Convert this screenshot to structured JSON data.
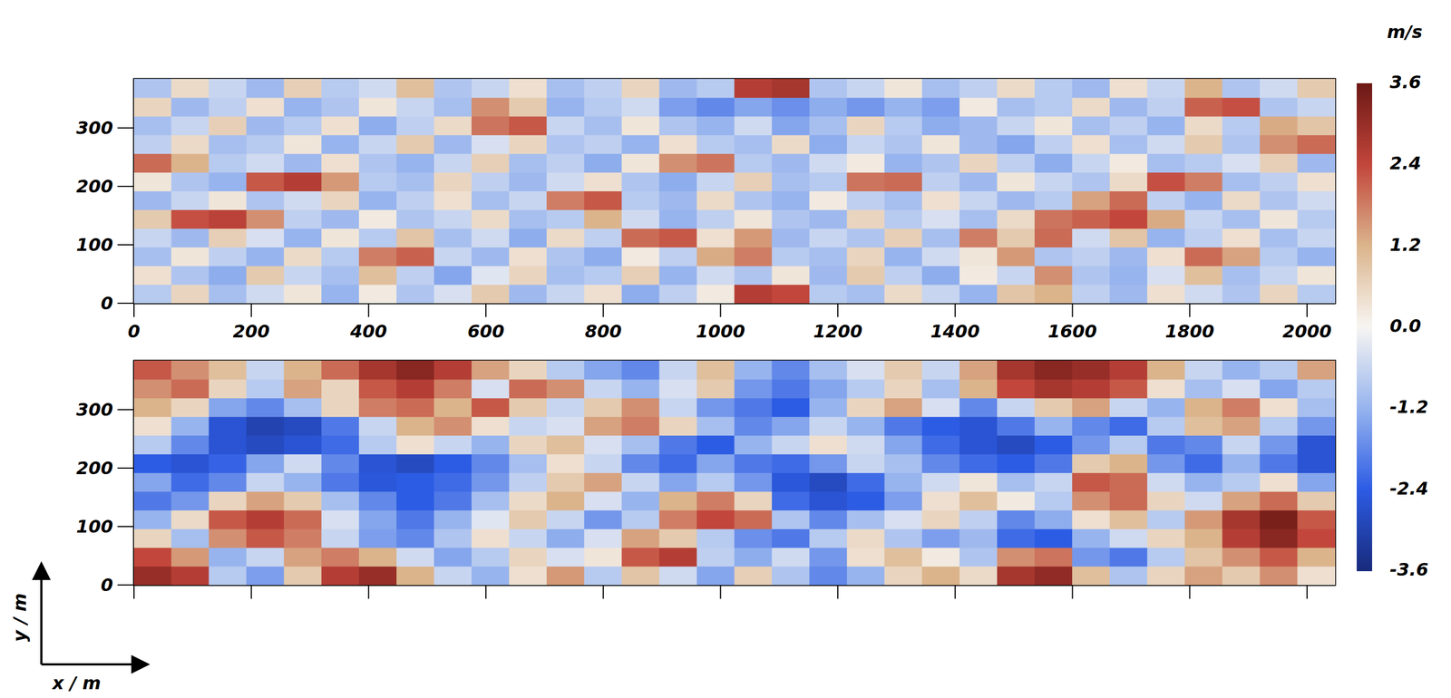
{
  "chart_data": [
    {
      "type": "heatmap",
      "x": [
        32,
        96,
        160,
        224,
        288,
        352,
        416,
        480,
        544,
        608,
        672,
        736,
        800,
        864,
        928,
        992,
        1056,
        1120,
        1184,
        1248,
        1312,
        1376,
        1440,
        1504,
        1568,
        1632,
        1696,
        1760,
        1824,
        1888,
        1952,
        2016
      ],
      "y": [
        16,
        48,
        80,
        112,
        144,
        176,
        208,
        240,
        272,
        304,
        336,
        368
      ],
      "cells": [
        [
          -0.8,
          0.6,
          -1.0,
          -0.5,
          0.3,
          -1.2,
          0.2,
          -0.9,
          -0.4,
          0.8,
          -1.1,
          -0.6,
          0.4,
          -1.3,
          -0.7,
          0.2,
          2.6,
          2.4,
          -0.8,
          -1.0,
          0.5,
          -0.6,
          -1.2,
          0.9,
          1.2,
          -0.7,
          -1.1,
          0.4,
          -0.5,
          -0.9,
          0.6,
          -0.8
        ],
        [
          0.4,
          -0.9,
          -1.3,
          0.8,
          -0.6,
          -1.0,
          1.0,
          -0.7,
          -1.4,
          -0.3,
          0.6,
          -1.0,
          -0.8,
          0.7,
          -1.2,
          -0.5,
          -0.9,
          0.3,
          -1.1,
          0.8,
          -0.7,
          -1.3,
          0.2,
          -0.6,
          1.6,
          -0.9,
          -1.2,
          -0.4,
          1.0,
          -1.0,
          -0.6,
          0.3
        ],
        [
          -1.0,
          0.3,
          -0.7,
          -1.2,
          0.5,
          -0.8,
          1.8,
          2.1,
          -0.6,
          -1.1,
          0.4,
          -0.9,
          -1.3,
          0.2,
          -0.7,
          1.3,
          1.8,
          -0.8,
          -1.0,
          0.6,
          -1.2,
          -0.5,
          0.3,
          1.5,
          -0.9,
          -0.7,
          -1.1,
          0.4,
          2.0,
          1.4,
          -0.8,
          -1.2
        ],
        [
          -0.6,
          -1.1,
          0.7,
          -0.4,
          -1.2,
          0.3,
          -0.8,
          0.9,
          -1.0,
          -0.5,
          -1.3,
          0.5,
          -0.7,
          2.0,
          2.2,
          0.4,
          1.5,
          -1.1,
          -0.6,
          -0.9,
          0.7,
          -1.0,
          1.8,
          0.8,
          2.0,
          -0.5,
          0.9,
          -1.2,
          -0.7,
          0.4,
          -1.0,
          -0.6
        ],
        [
          0.8,
          2.3,
          2.5,
          1.6,
          -0.7,
          -1.1,
          0.2,
          -0.9,
          -0.6,
          0.5,
          -1.0,
          -0.8,
          1.2,
          -0.5,
          -1.2,
          -0.7,
          0.3,
          -0.9,
          -1.1,
          0.6,
          -0.8,
          -0.4,
          -1.0,
          0.5,
          1.9,
          2.1,
          2.4,
          1.3,
          -0.6,
          -1.0,
          0.3,
          -0.8
        ],
        [
          -1.1,
          -0.6,
          0.3,
          -0.9,
          -0.5,
          0.6,
          -1.2,
          -0.7,
          0.4,
          -1.0,
          -0.6,
          1.8,
          2.2,
          -0.8,
          -1.1,
          0.5,
          -0.9,
          -1.2,
          0.2,
          -0.7,
          -1.0,
          0.4,
          -0.6,
          -1.1,
          -0.8,
          1.4,
          2.0,
          -0.7,
          -1.2,
          0.5,
          -0.9,
          -0.5
        ],
        [
          0.3,
          -0.9,
          -1.2,
          2.2,
          2.6,
          1.5,
          -0.8,
          -1.0,
          0.6,
          -0.7,
          -1.1,
          -0.5,
          0.4,
          -0.9,
          -1.3,
          -0.6,
          0.7,
          -1.0,
          -0.8,
          1.9,
          2.0,
          -0.7,
          -1.1,
          0.3,
          -0.6,
          -0.9,
          0.5,
          2.3,
          1.8,
          -1.0,
          -0.7,
          0.4
        ],
        [
          2.0,
          1.2,
          -0.8,
          -0.5,
          -1.1,
          0.4,
          -0.9,
          -1.2,
          -0.6,
          0.7,
          -1.0,
          -0.7,
          -1.3,
          0.3,
          1.6,
          1.9,
          -0.8,
          -1.1,
          -0.5,
          0.2,
          -1.2,
          -0.9,
          0.6,
          -0.7,
          -1.3,
          -0.6,
          0.2,
          -1.0,
          -0.8,
          -0.4,
          0.7,
          -1.1
        ],
        [
          -0.7,
          0.5,
          -1.0,
          -0.8,
          0.3,
          -1.2,
          -0.6,
          0.8,
          -1.1,
          -0.4,
          0.6,
          -0.9,
          -0.7,
          -1.2,
          0.4,
          -0.8,
          -1.0,
          0.5,
          -1.3,
          -0.6,
          -0.9,
          0.3,
          -1.1,
          -1.4,
          -0.7,
          0.4,
          -1.0,
          -0.5,
          0.8,
          -0.9,
          1.6,
          2.0
        ],
        [
          -1.0,
          -0.6,
          0.7,
          -1.1,
          -0.8,
          0.4,
          -1.3,
          -0.7,
          0.5,
          1.9,
          2.2,
          -0.6,
          -1.0,
          0.3,
          -0.9,
          -1.2,
          -0.5,
          -1.4,
          -1.0,
          0.6,
          -0.8,
          -1.3,
          -1.1,
          -0.6,
          0.3,
          -1.0,
          -0.7,
          -1.2,
          0.5,
          -0.8,
          1.3,
          0.9
        ],
        [
          0.6,
          -1.1,
          -0.7,
          0.4,
          -1.2,
          -0.9,
          0.3,
          -0.6,
          -1.0,
          1.6,
          0.8,
          -1.2,
          -0.8,
          -0.5,
          -1.5,
          -1.8,
          -1.4,
          -1.7,
          -1.3,
          -1.6,
          -1.2,
          -1.5,
          0.2,
          -1.0,
          -0.8,
          0.5,
          -1.1,
          -0.7,
          2.1,
          2.3,
          -0.9,
          -0.6
        ],
        [
          -0.9,
          0.5,
          -0.6,
          -1.1,
          0.7,
          -0.8,
          -0.5,
          1.0,
          -0.9,
          -0.6,
          0.4,
          -1.0,
          -0.7,
          0.6,
          -1.1,
          -0.8,
          2.6,
          2.8,
          -0.9,
          -0.6,
          0.3,
          -1.0,
          -0.7,
          0.5,
          -0.8,
          -1.1,
          0.4,
          -0.6,
          1.2,
          -0.9,
          -0.5,
          0.8
        ]
      ],
      "xlim": [
        0,
        2048
      ],
      "ylim": [
        0,
        384
      ],
      "xticks": [
        0,
        200,
        400,
        600,
        800,
        1000,
        1200,
        1400,
        1600,
        1800,
        2000
      ],
      "yticks": [
        0,
        100,
        200,
        300
      ]
    },
    {
      "type": "heatmap",
      "x": [
        32,
        96,
        160,
        224,
        288,
        352,
        416,
        480,
        544,
        608,
        672,
        736,
        800,
        864,
        928,
        992,
        1056,
        1120,
        1184,
        1248,
        1312,
        1376,
        1440,
        1504,
        1568,
        1632,
        1696,
        1760,
        1824,
        1888,
        1952,
        2016
      ],
      "y": [
        16,
        48,
        80,
        112,
        144,
        176,
        208,
        240,
        272,
        304,
        336,
        368
      ],
      "cells": [
        [
          3.0,
          2.6,
          -0.8,
          -1.5,
          0.8,
          2.6,
          3.0,
          1.2,
          -0.6,
          -1.2,
          0.4,
          1.5,
          -0.8,
          0.9,
          -0.5,
          -1.4,
          0.7,
          -0.9,
          -1.8,
          -1.2,
          0.6,
          1.2,
          0.5,
          2.8,
          3.1,
          1.0,
          -0.9,
          0.6,
          1.4,
          0.8,
          1.6,
          0.4
        ],
        [
          2.4,
          1.5,
          -1.2,
          -0.6,
          1.4,
          1.8,
          1.2,
          -0.5,
          -1.4,
          -0.8,
          0.6,
          -0.4,
          0.3,
          2.2,
          2.6,
          -0.7,
          -1.3,
          -0.5,
          -1.6,
          0.4,
          1.0,
          0.2,
          -0.9,
          1.6,
          1.9,
          -1.6,
          -2.0,
          -0.8,
          0.9,
          1.6,
          2.2,
          1.2
        ],
        [
          0.6,
          -1.0,
          1.6,
          2.2,
          1.8,
          -0.6,
          -1.5,
          -1.8,
          -0.9,
          0.4,
          -0.6,
          -1.3,
          -0.4,
          1.4,
          0.8,
          -0.8,
          -1.7,
          -2.0,
          -0.8,
          0.5,
          -0.9,
          -1.5,
          -1.1,
          -2.2,
          -2.4,
          -1.2,
          -0.5,
          0.6,
          1.2,
          2.6,
          3.2,
          2.4
        ],
        [
          -1.2,
          0.5,
          2.2,
          2.6,
          2.0,
          -0.4,
          -1.4,
          -2.0,
          -1.2,
          -0.3,
          0.8,
          -0.6,
          -1.6,
          -0.8,
          1.8,
          2.4,
          2.0,
          -0.9,
          -1.8,
          -1.0,
          -0.4,
          0.6,
          -0.7,
          -1.8,
          -1.3,
          0.4,
          1.0,
          -0.8,
          1.5,
          2.8,
          3.4,
          2.2
        ],
        [
          -2.0,
          -1.6,
          0.6,
          1.4,
          0.8,
          -1.0,
          -1.8,
          -2.4,
          -2.0,
          -1.0,
          0.5,
          1.2,
          -0.4,
          -1.2,
          1.2,
          1.8,
          0.6,
          -2.2,
          -2.6,
          -2.4,
          -1.5,
          0.4,
          1.0,
          0.2,
          -0.8,
          1.6,
          2.0,
          0.6,
          -0.5,
          1.4,
          2.0,
          0.8
        ],
        [
          -1.4,
          -2.2,
          -1.8,
          -0.6,
          -1.2,
          -2.0,
          -2.5,
          -2.4,
          -2.2,
          -1.6,
          -0.7,
          0.8,
          1.4,
          -0.6,
          -1.4,
          -0.8,
          -1.6,
          -2.5,
          -2.8,
          -2.2,
          -1.2,
          -0.5,
          0.3,
          -1.0,
          -0.6,
          2.2,
          2.0,
          -0.5,
          -1.2,
          -0.8,
          0.4,
          -1.4
        ],
        [
          -2.4,
          -2.6,
          -2.3,
          -1.4,
          -0.5,
          -1.8,
          -2.6,
          -2.8,
          -2.4,
          -1.8,
          -1.0,
          0.4,
          -0.6,
          -1.8,
          -2.2,
          -1.4,
          -2.0,
          -2.2,
          -1.6,
          -0.6,
          -1.0,
          -1.8,
          -2.2,
          -2.4,
          -2.0,
          0.8,
          1.2,
          -1.6,
          -2.2,
          -1.2,
          -2.0,
          -2.6
        ],
        [
          -0.8,
          -1.8,
          -2.6,
          -2.8,
          -2.6,
          -2.2,
          -0.8,
          0.4,
          -0.6,
          -1.2,
          0.6,
          1.0,
          -0.4,
          -1.0,
          -2.0,
          -2.4,
          -1.2,
          -0.6,
          0.4,
          -0.5,
          -1.4,
          -2.2,
          -2.6,
          -2.8,
          -2.4,
          -1.6,
          -0.8,
          -2.0,
          -1.8,
          -0.6,
          -1.6,
          -2.6
        ],
        [
          0.4,
          -1.2,
          -2.6,
          -3.0,
          -2.8,
          -2.0,
          -0.6,
          1.2,
          1.6,
          0.4,
          -0.6,
          -0.4,
          1.4,
          1.8,
          0.6,
          -1.0,
          -1.8,
          -1.4,
          -0.6,
          -1.2,
          -2.0,
          -2.4,
          -2.6,
          -2.0,
          -1.2,
          -1.8,
          -2.2,
          -0.8,
          1.0,
          1.4,
          -0.8,
          -1.6
        ],
        [
          1.2,
          0.6,
          -1.4,
          -1.8,
          -1.0,
          0.6,
          1.8,
          2.0,
          1.2,
          2.2,
          0.8,
          -0.6,
          0.8,
          1.6,
          -0.6,
          -1.6,
          -2.0,
          -2.4,
          -1.2,
          0.6,
          1.4,
          -0.4,
          -1.8,
          -0.6,
          0.8,
          1.4,
          -0.6,
          -1.2,
          1.2,
          1.8,
          0.4,
          -1.0
        ],
        [
          1.6,
          2.0,
          0.6,
          -0.8,
          1.4,
          0.6,
          2.2,
          2.6,
          1.8,
          -0.4,
          2.0,
          1.6,
          -0.6,
          -1.2,
          -0.4,
          0.8,
          -1.6,
          -2.0,
          -1.4,
          -0.8,
          0.6,
          -1.0,
          1.2,
          2.4,
          2.8,
          2.6,
          2.2,
          0.4,
          -1.0,
          -0.4,
          -1.4,
          -0.8
        ],
        [
          2.2,
          1.6,
          1.0,
          -0.6,
          1.2,
          2.0,
          2.8,
          3.2,
          2.6,
          1.4,
          0.6,
          -0.8,
          -1.4,
          -1.8,
          -0.6,
          1.0,
          -1.2,
          -1.8,
          -1.0,
          -0.4,
          0.8,
          -0.6,
          1.4,
          2.8,
          3.2,
          3.0,
          2.6,
          1.2,
          -0.6,
          -1.2,
          -0.8,
          1.4
        ]
      ],
      "xlim": [
        0,
        2048
      ],
      "ylim": [
        0,
        384
      ],
      "xticks": [
        0,
        200,
        400,
        600,
        800,
        1000,
        1200,
        1400,
        1600,
        1800,
        2000
      ],
      "yticks": [
        0,
        100,
        200,
        300
      ],
      "tick_labels": "y",
      "xlabel": "x / m",
      "ylabel": "y / m"
    }
  ],
  "colorbar": {
    "label": "m/s",
    "range": [
      -3.6,
      3.6
    ],
    "ticks": [
      -3.6,
      -2.4,
      -1.2,
      {
        "value": 0,
        "label": "0.0"
      },
      1.2,
      2.4,
      3.6
    ]
  }
}
